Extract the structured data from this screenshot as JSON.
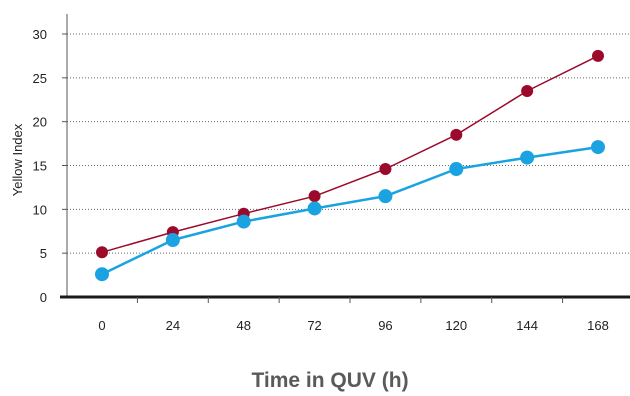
{
  "chart_data": {
    "type": "line",
    "title": "",
    "xlabel": "Time in QUV (h)",
    "ylabel": "Yellow Index",
    "x": [
      0,
      24,
      48,
      72,
      96,
      120,
      144,
      168
    ],
    "xticks": [
      "0",
      "24",
      "48",
      "72",
      "96",
      "120",
      "144",
      "168"
    ],
    "yticks": [
      "0",
      "5",
      "10",
      "15",
      "20",
      "25",
      "30"
    ],
    "ylim": [
      0,
      30
    ],
    "grid": true,
    "legend": "none",
    "series": [
      {
        "color": "#9b0a2a",
        "values": [
          5.1,
          7.4,
          9.5,
          11.5,
          14.6,
          18.5,
          23.5,
          27.5
        ]
      },
      {
        "color": "#1aa3e0",
        "values": [
          2.6,
          6.5,
          8.6,
          10.1,
          11.5,
          14.6,
          15.9,
          17.1
        ]
      }
    ]
  }
}
